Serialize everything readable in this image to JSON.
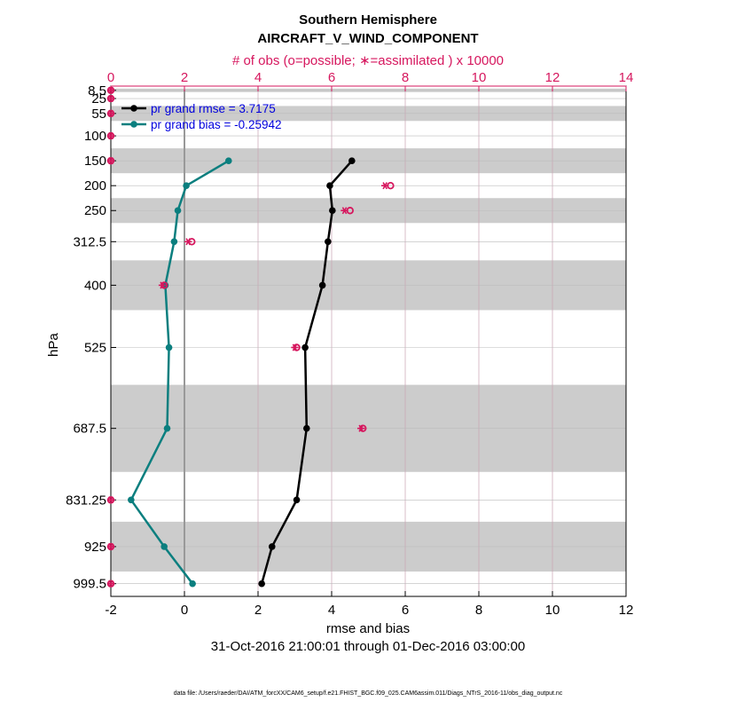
{
  "chart_data": {
    "type": "line",
    "title": "Southern Hemisphere",
    "subtitle": "AIRCRAFT_V_WIND_COMPONENT",
    "top_axis_label": "# of obs (o=possible; ∗=assimilated ) x 10000",
    "xlabel": "rmse and bias",
    "date_range": "31-Oct-2016 21:00:01 through 01-Dec-2016 03:00:00",
    "ylabel": "hPa",
    "footer": "data file: /Users/raeder/DAI/ATM_forcXX/CAM6_setup/f.e21.FHIST_BGC.f09_025.CAM6assim.011/Diags_NTrS_2016-11/obs_diag_output.nc",
    "xlim": [
      -2,
      12
    ],
    "x_ticks": [
      "-2",
      "0",
      "2",
      "4",
      "6",
      "8",
      "10",
      "12"
    ],
    "top_xlim": [
      0,
      14
    ],
    "top_ticks": [
      "0",
      "2",
      "4",
      "6",
      "8",
      "10",
      "12",
      "14"
    ],
    "ylim": [
      1025,
      0
    ],
    "y_ticks": [
      "8.5",
      "25",
      "55",
      "100",
      "150",
      "200",
      "250",
      "312.5",
      "400",
      "525",
      "687.5",
      "831.25",
      "925",
      "999.5"
    ],
    "y_tick_values": [
      8.5,
      25,
      55,
      100,
      150,
      200,
      250,
      312.5,
      400,
      525,
      687.5,
      831.25,
      925,
      999.5
    ],
    "shaded_layers_hPa": [
      [
        5,
        12
      ],
      [
        40,
        70
      ],
      [
        125,
        175
      ],
      [
        225,
        275
      ],
      [
        350,
        450
      ],
      [
        600,
        775
      ],
      [
        875,
        975
      ]
    ],
    "series": [
      {
        "name": "rmse",
        "legend": "pr grand rmse = 3.7175",
        "color": "#000000",
        "levels": [
          150,
          200,
          250,
          312.5,
          400,
          525,
          687.5,
          831.25,
          925,
          999.5
        ],
        "values": [
          4.55,
          3.95,
          4.02,
          3.9,
          3.75,
          3.28,
          3.32,
          3.05,
          2.38,
          2.1
        ]
      },
      {
        "name": "bias",
        "legend": "pr grand bias = -0.25942",
        "color": "#0b7f7f",
        "levels": [
          150,
          200,
          250,
          312.5,
          400,
          525,
          687.5,
          831.25,
          925,
          999.5
        ],
        "values": [
          1.2,
          0.05,
          -0.18,
          -0.28,
          -0.52,
          -0.42,
          -0.47,
          -1.45,
          -0.55,
          0.22
        ]
      }
    ],
    "obs_possible": {
      "levels": [
        8.5,
        25,
        55,
        100,
        150,
        200,
        250,
        312.5,
        400,
        525,
        687.5,
        831.25,
        925,
        999.5
      ],
      "values": [
        0,
        0,
        0,
        0,
        0,
        7.6,
        6.5,
        2.2,
        1.45,
        5.05,
        6.85,
        0,
        0,
        0
      ]
    },
    "obs_assimilated": {
      "levels": [
        8.5,
        25,
        55,
        100,
        150,
        200,
        250,
        312.5,
        400,
        525,
        687.5,
        831.25,
        925,
        999.5
      ],
      "values": [
        0,
        0,
        0,
        0,
        0,
        7.45,
        6.35,
        2.1,
        1.4,
        5.0,
        6.8,
        0,
        0,
        0
      ]
    },
    "colors": {
      "obs": "#d6175e",
      "bias": "#0b7f7f",
      "rmse": "#000000",
      "legend_text": "#0000dd",
      "shade": "#cccccc"
    }
  }
}
